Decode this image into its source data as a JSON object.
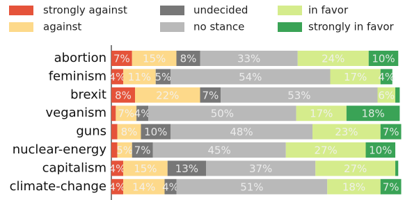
{
  "chart_data": {
    "type": "stacked-barh",
    "categories": [
      "abortion",
      "feminism",
      "brexit",
      "veganism",
      "guns",
      "nuclear-energy",
      "capitalism",
      "climate-change"
    ],
    "xlim": [
      0,
      100
    ],
    "series": [
      {
        "name": "strongly against",
        "color": "#e5533a",
        "values": [
          7,
          4,
          8,
          1.5,
          2,
          2,
          4,
          4
        ],
        "value_labels": [
          "7%",
          "4%",
          "8%",
          null,
          null,
          null,
          "4%",
          "4%"
        ]
      },
      {
        "name": "against",
        "color": "#fdd98a",
        "values": [
          15,
          11,
          22,
          7,
          8,
          5,
          15,
          14
        ],
        "value_labels": [
          "15%",
          "11%",
          "22%",
          "7%",
          "8%",
          "5%",
          "15%",
          "14%"
        ]
      },
      {
        "name": "undecided",
        "color": "#777777",
        "values": [
          8,
          5,
          7,
          4,
          10,
          7,
          13,
          4
        ],
        "value_labels": [
          "8%",
          "5%",
          "7%",
          "4%",
          "10%",
          "7%",
          "13%",
          "4%"
        ]
      },
      {
        "name": "no stance",
        "color": "#b9b9b9",
        "values": [
          33,
          54,
          53,
          50,
          48,
          45,
          37,
          51
        ],
        "value_labels": [
          "33%",
          "54%",
          "53%",
          "50%",
          "48%",
          "45%",
          "37%",
          "51%"
        ]
      },
      {
        "name": "in favor",
        "color": "#d5ec8c",
        "values": [
          24,
          17,
          6,
          17,
          23,
          27,
          27,
          18
        ],
        "value_labels": [
          "24%",
          "17%",
          "6%",
          "17%",
          "23%",
          "27%",
          "27%",
          "18%"
        ]
      },
      {
        "name": "strongly in favor",
        "color": "#3aa356",
        "values": [
          10,
          4,
          1.5,
          18,
          7,
          10,
          1,
          7
        ],
        "value_labels": [
          "10%",
          "4%",
          null,
          "18%",
          "7%",
          "10%",
          null,
          "7%"
        ]
      }
    ]
  }
}
